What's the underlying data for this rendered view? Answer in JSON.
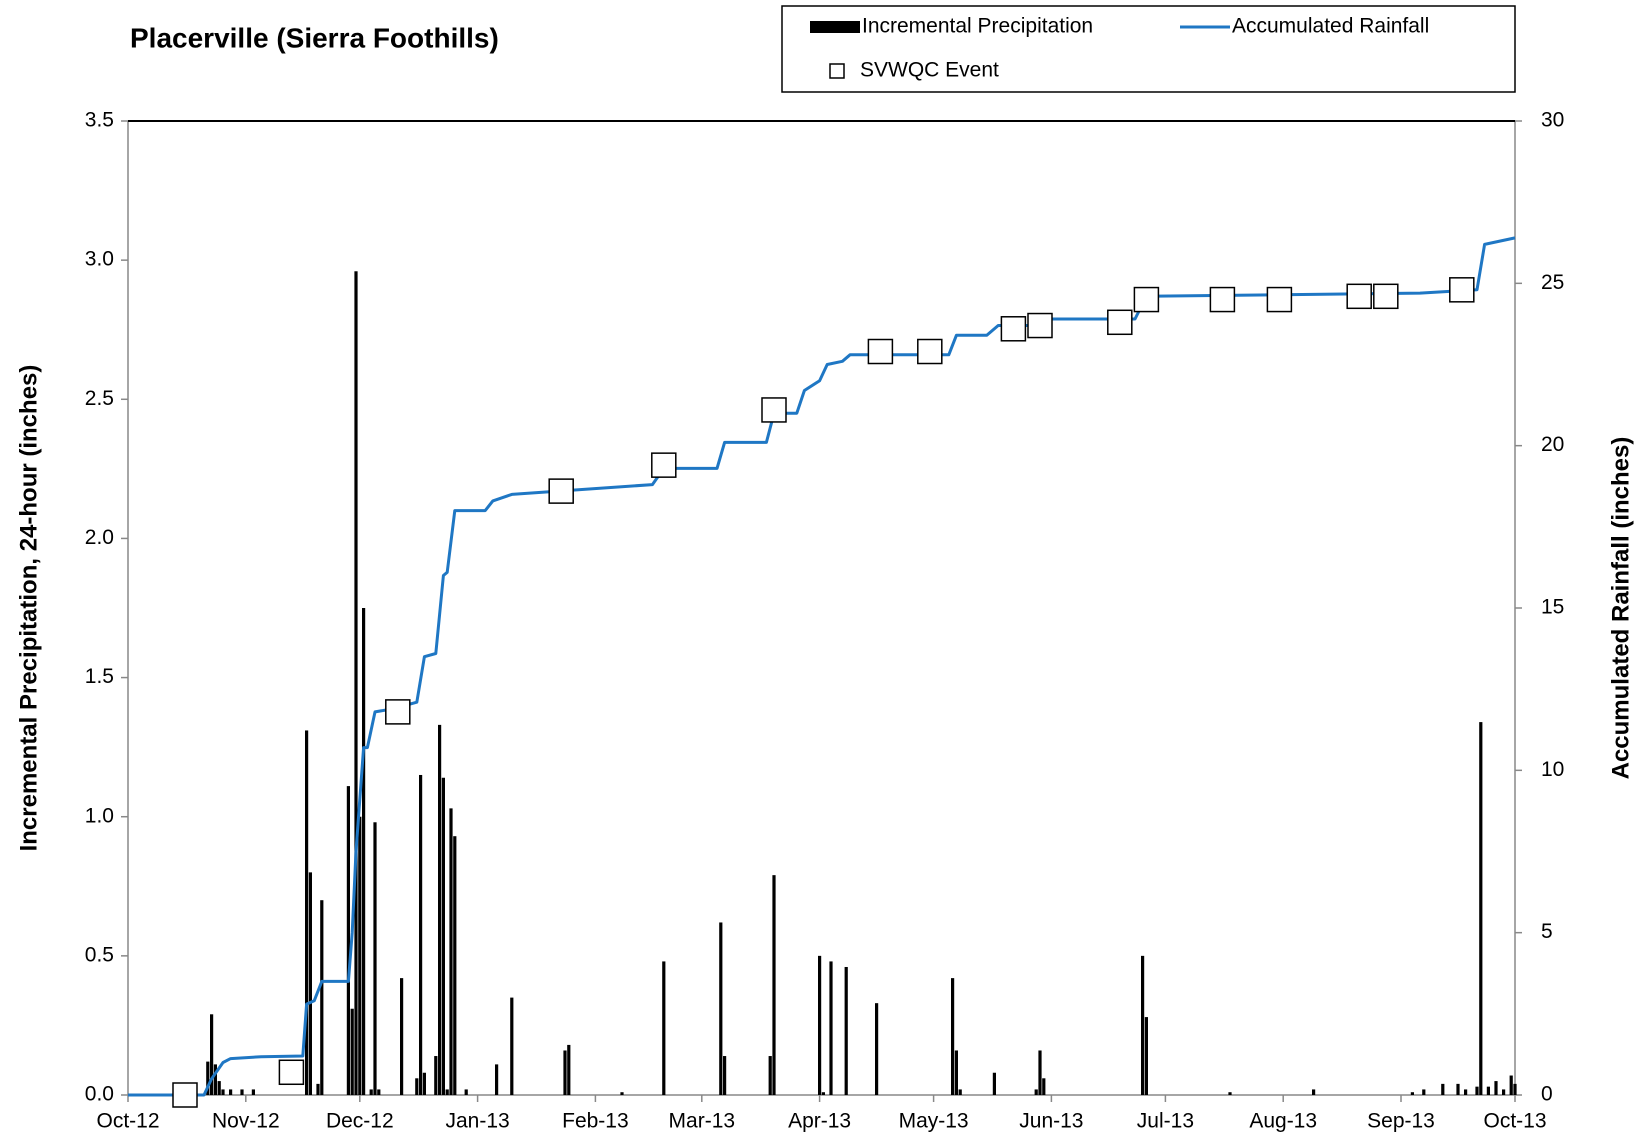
{
  "chart_data": {
    "type": "combo",
    "title": "Placerville (Sierra Foothills)",
    "y_label": "Incremental Precipitation, 24-hour (inches)",
    "y2_label": "Accumulated Rainfall (inches)",
    "xlim": [
      0,
      365
    ],
    "xticks": [
      {
        "value": 0,
        "label": "Oct-12"
      },
      {
        "value": 31,
        "label": "Nov-12"
      },
      {
        "value": 61,
        "label": "Dec-12"
      },
      {
        "value": 92,
        "label": "Jan-13"
      },
      {
        "value": 123,
        "label": "Feb-13"
      },
      {
        "value": 151,
        "label": "Mar-13"
      },
      {
        "value": 182,
        "label": "Apr-13"
      },
      {
        "value": 212,
        "label": "May-13"
      },
      {
        "value": 243,
        "label": "Jun-13"
      },
      {
        "value": 273,
        "label": "Jul-13"
      },
      {
        "value": 304,
        "label": "Aug-13"
      },
      {
        "value": 335,
        "label": "Sep-13"
      },
      {
        "value": 365,
        "label": "Oct-13"
      }
    ],
    "ylim": [
      0,
      3.5
    ],
    "yticks": [
      {
        "value": 0,
        "label": "0.0"
      },
      0.5,
      {
        "value": 1,
        "label": "1.0"
      },
      1.5,
      {
        "value": 2,
        "label": "2.0"
      },
      2.5,
      {
        "value": 3,
        "label": "3.0"
      },
      3.5
    ],
    "y2lim": [
      0,
      30
    ],
    "y2ticks": [
      0,
      5,
      10,
      15,
      20,
      25,
      30
    ],
    "series": [
      {
        "name": "Incremental Precipitation",
        "type": "bar",
        "color": "#000000",
        "x": [
          21,
          22,
          23,
          24,
          25,
          27,
          30,
          33,
          47,
          48,
          50,
          51,
          58,
          59,
          60,
          61,
          62,
          64,
          65,
          66,
          72,
          76,
          77,
          78,
          81,
          82,
          83,
          84,
          85,
          86,
          89,
          97,
          101,
          115,
          116,
          130,
          141,
          156,
          157,
          169,
          170,
          182,
          183,
          185,
          189,
          197,
          217,
          218,
          219,
          228,
          239,
          240,
          241,
          267,
          268,
          290,
          312,
          338,
          341,
          346,
          350,
          352,
          355,
          356,
          358,
          360,
          362,
          364,
          365
        ],
        "values": [
          0.12,
          0.29,
          0.11,
          0.05,
          0.02,
          0.02,
          0.02,
          0.02,
          1.31,
          0.8,
          0.04,
          0.7,
          1.11,
          0.31,
          2.96,
          1.0,
          1.75,
          0.02,
          0.98,
          0.02,
          0.42,
          0.06,
          1.15,
          0.08,
          0.14,
          1.33,
          1.14,
          0.02,
          1.03,
          0.93,
          0.02,
          0.11,
          0.35,
          0.16,
          0.18,
          0.01,
          0.48,
          0.62,
          0.14,
          0.14,
          0.79,
          0.5,
          0.01,
          0.48,
          0.46,
          0.33,
          0.42,
          0.16,
          0.02,
          0.08,
          0.02,
          0.16,
          0.06,
          0.5,
          0.28,
          0.01,
          0.02,
          0.01,
          0.02,
          0.04,
          0.04,
          0.02,
          0.03,
          1.34,
          0.03,
          0.05,
          0.02,
          0.07,
          0.04
        ]
      },
      {
        "name": "Accumulated Rainfall",
        "type": "line",
        "axis": "y2",
        "color": "#1f77c4",
        "x": [
          0,
          20,
          22,
          25,
          27,
          35,
          46,
          47,
          49,
          51,
          58,
          59,
          60,
          62,
          63,
          65,
          70,
          76,
          78,
          81,
          82,
          83,
          84,
          86,
          94,
          96,
          101,
          138,
          141,
          155,
          157,
          168,
          170,
          176,
          178,
          182,
          184,
          188,
          190,
          216,
          218,
          226,
          229,
          238,
          241,
          265,
          268,
          340,
          355,
          357,
          365
        ],
        "values": [
          0,
          0,
          0.5,
          1.0,
          1.12,
          1.18,
          1.2,
          2.8,
          2.9,
          3.5,
          3.5,
          5.0,
          7.5,
          10.7,
          10.7,
          11.8,
          11.9,
          12.1,
          13.5,
          13.6,
          14.8,
          16.0,
          16.1,
          18.0,
          18.0,
          18.3,
          18.5,
          18.8,
          19.3,
          19.3,
          20.1,
          20.1,
          21.0,
          21.0,
          21.7,
          22.0,
          22.5,
          22.6,
          22.8,
          22.8,
          23.4,
          23.4,
          23.7,
          23.7,
          23.9,
          23.9,
          24.6,
          24.7,
          24.8,
          26.2,
          26.4
        ]
      },
      {
        "name": "SVWQC Event",
        "type": "scatter",
        "axis": "y2",
        "color": "#ffffff",
        "x": [
          15,
          43,
          71,
          114,
          141,
          170,
          198,
          211,
          233,
          240,
          261,
          268,
          288,
          303,
          324,
          331,
          351
        ],
        "values": [
          0,
          0.7,
          11.8,
          18.6,
          19.4,
          21.1,
          22.9,
          22.9,
          23.6,
          23.7,
          23.8,
          24.5,
          24.5,
          24.5,
          24.6,
          24.6,
          24.8
        ]
      }
    ]
  }
}
